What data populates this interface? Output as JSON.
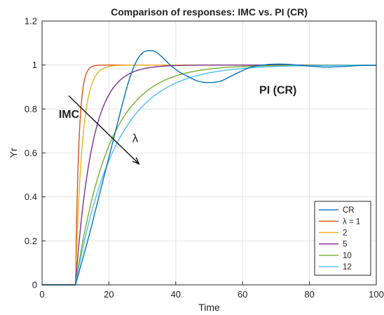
{
  "chart_data": {
    "type": "line",
    "title": "Comparison of responses: IMC vs. PI (CR)",
    "xlabel": "Time",
    "ylabel": "Yr",
    "xlim": [
      0,
      100
    ],
    "ylim": [
      0,
      1.2
    ],
    "xticks": [
      0,
      20,
      40,
      60,
      80,
      100
    ],
    "yticks": [
      0,
      0.2,
      0.4,
      0.6,
      0.8,
      1,
      1.2
    ],
    "xtick_labels": [
      "0",
      "20",
      "40",
      "60",
      "80",
      "100"
    ],
    "ytick_labels": [
      "0",
      "0.2",
      "0.4",
      "0.6",
      "0.8",
      "1",
      "1.2"
    ],
    "grid": true,
    "legend_position": "bottom-right",
    "colors": {
      "CR": "#0072BD",
      "lambda1": "#D95319",
      "l2": "#EDB120",
      "l5": "#7E2F8E",
      "l10": "#77AC30",
      "l12": "#4DBEEE"
    },
    "series": [
      {
        "name": "CR",
        "key": "CR",
        "x": [
          0,
          10,
          12,
          14,
          16,
          18,
          20,
          22,
          24,
          26,
          28,
          30,
          32,
          34,
          36,
          38,
          40,
          42,
          44,
          46,
          48,
          50,
          52,
          54,
          56,
          58,
          60,
          62,
          64,
          66,
          68,
          70,
          72,
          74,
          76,
          78,
          80,
          82,
          84,
          86,
          88,
          90,
          92,
          94,
          96,
          98,
          100
        ],
        "y": [
          0,
          0,
          0.11,
          0.22,
          0.34,
          0.46,
          0.58,
          0.7,
          0.82,
          0.93,
          1.01,
          1.055,
          1.065,
          1.06,
          1.035,
          1.005,
          0.98,
          0.96,
          0.945,
          0.93,
          0.922,
          0.92,
          0.922,
          0.93,
          0.945,
          0.96,
          0.975,
          0.988,
          0.995,
          1.0,
          1.003,
          1.004,
          1.004,
          1.003,
          1.0,
          0.998,
          0.995,
          0.993,
          0.991,
          0.991,
          0.992,
          0.993,
          0.995,
          0.997,
          0.998,
          0.998,
          0.998
        ]
      },
      {
        "name": "λ = 1",
        "key": "lambda1",
        "x": [
          0,
          10,
          100
        ],
        "y": [
          0,
          0,
          1
        ],
        "tau": 1
      },
      {
        "name": "2",
        "key": "l2",
        "x": [
          0,
          10,
          100
        ],
        "y": [
          0,
          0,
          1
        ],
        "tau": 2
      },
      {
        "name": "5",
        "key": "l5",
        "x": [
          0,
          10,
          100
        ],
        "y": [
          0,
          0,
          1
        ],
        "tau": 5
      },
      {
        "name": "10",
        "key": "l10",
        "x": [
          0,
          10,
          100
        ],
        "y": [
          0,
          0,
          1
        ],
        "tau": 10
      },
      {
        "name": "12",
        "key": "l12",
        "x": [
          0,
          10,
          100
        ],
        "y": [
          0,
          0,
          1
        ],
        "tau": 12
      }
    ],
    "annotations": [
      {
        "text": "IMC",
        "x": 5,
        "y": 0.76
      },
      {
        "text": "PI (CR)",
        "x": 65,
        "y": 0.87
      },
      {
        "text": "λ",
        "x": 27,
        "y": 0.65
      }
    ],
    "arrow": {
      "x1": 8,
      "y1": 0.86,
      "x2": 29,
      "y2": 0.55
    }
  }
}
